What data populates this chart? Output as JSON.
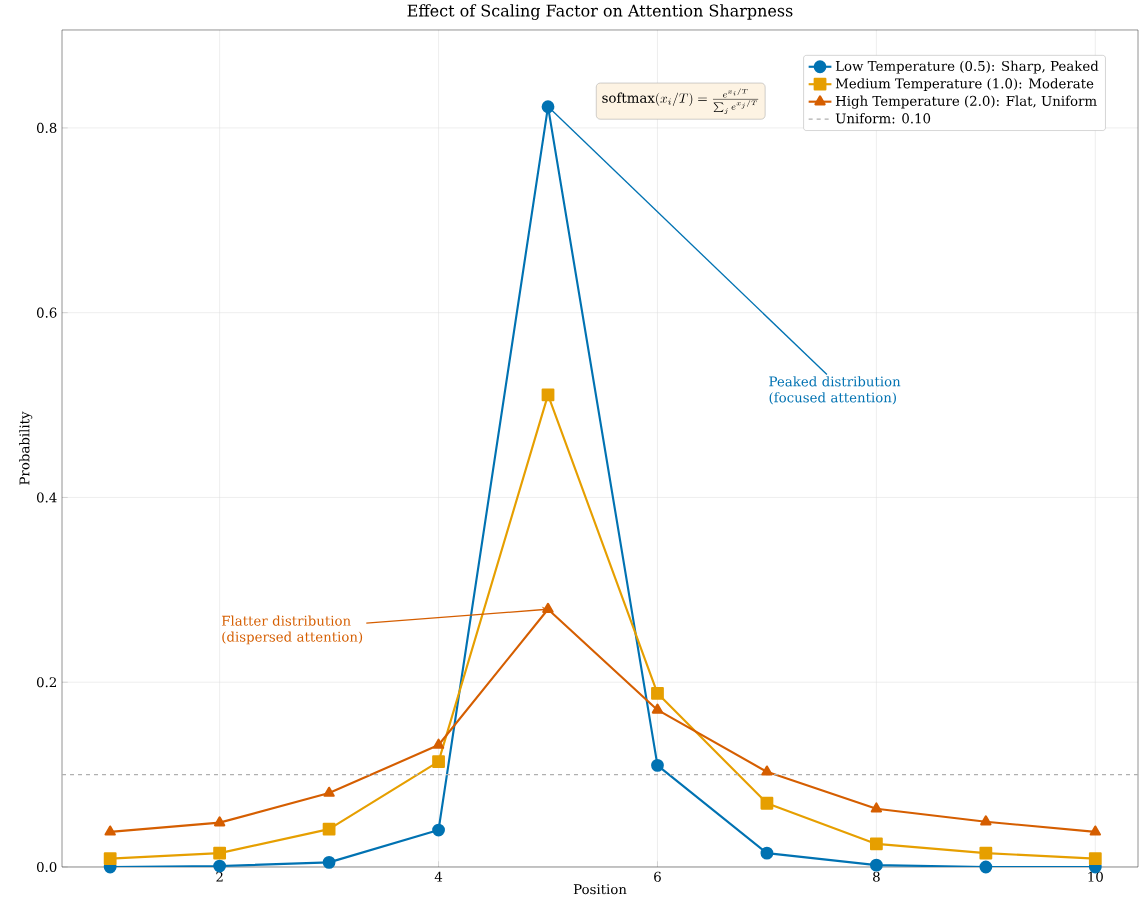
{
  "chart_data": {
    "type": "line",
    "title": "Effect of Scaling Factor on Attention Sharpness",
    "xlabel": "Position",
    "ylabel": "Probability",
    "x": [
      1,
      2,
      3,
      4,
      5,
      6,
      7,
      8,
      9,
      10
    ],
    "series": [
      {
        "name": "Low Temperature (0.5): Sharp, Peaked",
        "color": "#0072b2",
        "marker": "circle",
        "values": [
          0.0,
          0.001,
          0.005,
          0.04,
          0.823,
          0.11,
          0.015,
          0.002,
          0.0,
          0.0
        ]
      },
      {
        "name": "Medium Temperature (1.0): Moderate",
        "color": "#e69f00",
        "marker": "square",
        "values": [
          0.009,
          0.015,
          0.041,
          0.114,
          0.511,
          0.188,
          0.069,
          0.025,
          0.015,
          0.009
        ]
      },
      {
        "name": "High Temperature (2.0): Flat, Uniform",
        "color": "#d55e00",
        "marker": "triangle",
        "values": [
          0.038,
          0.048,
          0.08,
          0.132,
          0.279,
          0.17,
          0.103,
          0.063,
          0.049,
          0.038
        ]
      }
    ],
    "ref_lines": [
      {
        "axis": "y",
        "value": 0.1,
        "label": "Uniform: 0.10",
        "color": "#b0b0b0",
        "line_style": "dashed"
      }
    ],
    "annotations": [
      "\\mathrm{softmax}(x_i/T) = \\frac{e^{x_i/T}}{\\sum_j e^{x_j/T}}",
      {
        "text": "Peaked distribution (focused attention)",
        "x": 5,
        "y": 0.823
      },
      {
        "text": "Flatter distribution (dispersed attention)",
        "x": 5,
        "y": 0.279
      }
    ],
    "xlim": [
      0.56,
      10.39
    ],
    "ylim": [
      0,
      0.906
    ],
    "xticks": [
      2,
      4,
      6,
      8,
      10
    ],
    "yticks": [
      {
        "value": 0,
        "label": "0.0"
      },
      {
        "value": 0.2,
        "label": "0.2"
      },
      {
        "value": 0.4,
        "label": "0.4"
      },
      {
        "value": 0.6,
        "label": "0.6"
      },
      {
        "value": 0.8,
        "label": "0.8"
      }
    ],
    "grid": true,
    "legend": "top right",
    "line_style": "solid"
  }
}
